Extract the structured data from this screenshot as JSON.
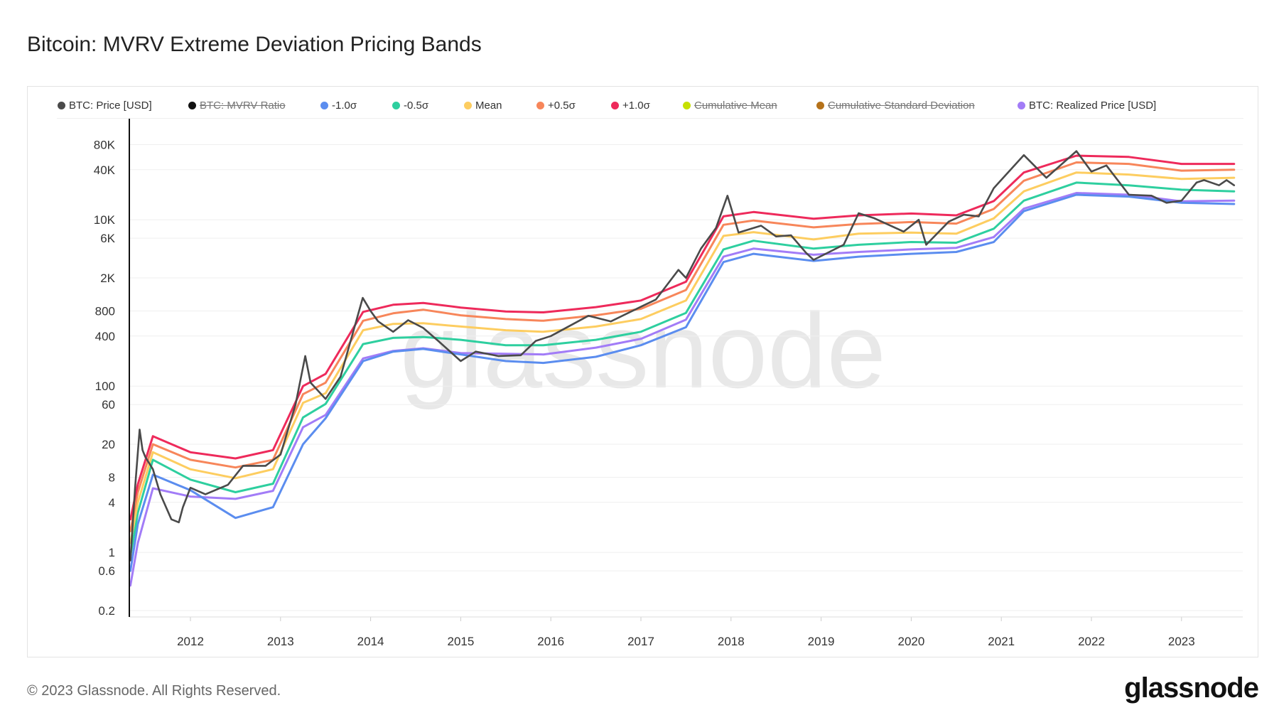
{
  "title": "Bitcoin: MVRV Extreme Deviation Pricing Bands",
  "footer": "© 2023 Glassnode. All Rights Reserved.",
  "logo": "glassnode",
  "watermark": "glassnode",
  "chart_data": {
    "type": "line",
    "title": "Bitcoin: MVRV Extreme Deviation Pricing Bands",
    "y_scale": "log",
    "ylim": [
      0.17,
      164000
    ],
    "xlim": [
      "2011-05",
      "2023-09"
    ],
    "grid": true,
    "legend_placement": "top",
    "y_ticks": [
      {
        "v": 80000,
        "label": "80K"
      },
      {
        "v": 40000,
        "label": "40K"
      },
      {
        "v": 10000,
        "label": "10K"
      },
      {
        "v": 6000,
        "label": "6K"
      },
      {
        "v": 2000,
        "label": "2K"
      },
      {
        "v": 800,
        "label": "800"
      },
      {
        "v": 400,
        "label": "400"
      },
      {
        "v": 100,
        "label": "100"
      },
      {
        "v": 60,
        "label": "60"
      },
      {
        "v": 20,
        "label": "20"
      },
      {
        "v": 8,
        "label": "8"
      },
      {
        "v": 4,
        "label": "4"
      },
      {
        "v": 1,
        "label": "1"
      },
      {
        "v": 0.6,
        "label": "0.6"
      },
      {
        "v": 0.2,
        "label": "0.2"
      }
    ],
    "x_ticks": [
      "2012",
      "2013",
      "2014",
      "2015",
      "2016",
      "2017",
      "2018",
      "2019",
      "2020",
      "2021",
      "2022",
      "2023"
    ],
    "legend": [
      {
        "name": "BTC: Price [USD]",
        "color": "#4a4a4a",
        "hidden": false
      },
      {
        "name": "BTC: MVRV Ratio",
        "color": "#111111",
        "hidden": true
      },
      {
        "name": "-1.0σ",
        "color": "#5b8def",
        "hidden": false
      },
      {
        "name": "-0.5σ",
        "color": "#2ecf9f",
        "hidden": false
      },
      {
        "name": "Mean",
        "color": "#fdcd60",
        "hidden": false
      },
      {
        "name": "+0.5σ",
        "color": "#f7865a",
        "hidden": false
      },
      {
        "name": "+1.0σ",
        "color": "#ee2a5b",
        "hidden": false
      },
      {
        "name": "Cumulative Mean",
        "color": "#c6e000",
        "hidden": true
      },
      {
        "name": "Cumulative Standard Deviation",
        "color": "#b5721a",
        "hidden": true
      },
      {
        "name": "BTC: Realized Price [USD]",
        "color": "#a27cf7",
        "hidden": false
      }
    ],
    "band_dates": [
      "2011-05",
      "2011-06",
      "2011-08",
      "2012-01",
      "2012-07",
      "2012-12",
      "2013-04",
      "2013-07",
      "2013-12",
      "2014-04",
      "2014-08",
      "2015-01",
      "2015-07",
      "2015-12",
      "2016-07",
      "2017-01",
      "2017-07",
      "2017-12",
      "2018-04",
      "2018-12",
      "2019-06",
      "2020-01",
      "2020-07",
      "2020-12",
      "2021-04",
      "2021-11",
      "2022-06",
      "2023-01",
      "2023-08"
    ],
    "series": [
      {
        "name": "BTC: Realized Price [USD]",
        "color": "#a27cf7",
        "values": [
          0.4,
          1.3,
          5.9,
          4.7,
          4.4,
          5.5,
          32,
          45,
          215,
          265,
          285,
          250,
          245,
          240,
          290,
          370,
          630,
          3600,
          4500,
          3800,
          4100,
          4400,
          4600,
          6200,
          13600,
          21000,
          20000,
          16700,
          17000
        ]
      },
      {
        "name": "-1.0σ",
        "color": "#5b8def",
        "values": [
          0.6,
          2.2,
          8.6,
          5.6,
          2.6,
          3.5,
          20,
          41,
          200,
          260,
          280,
          240,
          200,
          190,
          225,
          310,
          510,
          3100,
          3900,
          3200,
          3600,
          3900,
          4100,
          5400,
          12700,
          20000,
          19000,
          16000,
          15500
        ]
      },
      {
        "name": "-0.5σ",
        "color": "#2ecf9f",
        "values": [
          0.9,
          3,
          13,
          7.5,
          5.3,
          6.7,
          42,
          61,
          320,
          380,
          390,
          360,
          310,
          310,
          360,
          450,
          760,
          4400,
          5600,
          4500,
          5000,
          5400,
          5300,
          7800,
          17000,
          28000,
          26000,
          23000,
          22000
        ]
      },
      {
        "name": "Mean",
        "color": "#fdcd60",
        "values": [
          1.3,
          4,
          16,
          10,
          7.8,
          10,
          63,
          82,
          470,
          560,
          570,
          520,
          470,
          450,
          520,
          640,
          1070,
          6400,
          7100,
          5800,
          6800,
          7000,
          6800,
          10400,
          22000,
          37000,
          35000,
          31000,
          32000
        ]
      },
      {
        "name": "+0.5σ",
        "color": "#f7865a",
        "values": [
          1.8,
          5.3,
          20,
          13,
          10.5,
          13,
          80,
          110,
          610,
          750,
          830,
          710,
          640,
          610,
          710,
          850,
          1430,
          8700,
          9800,
          8100,
          8900,
          9400,
          9000,
          13500,
          29500,
          49000,
          47000,
          39000,
          40000
        ]
      },
      {
        "name": "+1.0σ",
        "color": "#ee2a5b",
        "values": [
          2.5,
          6.6,
          25,
          16,
          13.5,
          17,
          100,
          140,
          780,
          950,
          1000,
          880,
          790,
          770,
          890,
          1070,
          1800,
          11000,
          12400,
          10300,
          11300,
          11900,
          11300,
          16800,
          37000,
          59000,
          57000,
          47000,
          47000
        ]
      },
      {
        "name": "BTC: Price [USD]",
        "color": "#4a4a4a",
        "dates": [
          "2011-05",
          "2011-05-20",
          "2011-06-08",
          "2011-06-20",
          "2011-07",
          "2011-08",
          "2011-09",
          "2011-10-15",
          "2011-11-15",
          "2011-12",
          "2012-01",
          "2012-03",
          "2012-06",
          "2012-08",
          "2012-10",
          "2012-11",
          "2013-01",
          "2013-03",
          "2013-04-10",
          "2013-05",
          "2013-07",
          "2013-09",
          "2013-11-30",
          "2014-01",
          "2014-02",
          "2014-04",
          "2014-06",
          "2014-08",
          "2014-10",
          "2015-01",
          "2015-03",
          "2015-06",
          "2015-09",
          "2015-11",
          "2016-01",
          "2016-06",
          "2016-09",
          "2017-01",
          "2017-03",
          "2017-06",
          "2017-07",
          "2017-09",
          "2017-11",
          "2017-12-17",
          "2018-02",
          "2018-05",
          "2018-07",
          "2018-09",
          "2018-11",
          "2018-12",
          "2019-04",
          "2019-06",
          "2019-08",
          "2019-12",
          "2020-02",
          "2020-03",
          "2020-06",
          "2020-08",
          "2020-10",
          "2020-12",
          "2021-04",
          "2021-07",
          "2021-11",
          "2022-01",
          "2022-03",
          "2022-06",
          "2022-09",
          "2022-11",
          "2023-01",
          "2023-03",
          "2023-04",
          "2023-06",
          "2023-07",
          "2023-08"
        ],
        "values": [
          0.8,
          6,
          30,
          17,
          14,
          10,
          5,
          2.5,
          2.3,
          3.5,
          6,
          5,
          6.5,
          11,
          11,
          11,
          15,
          60,
          230,
          110,
          70,
          130,
          1150,
          800,
          600,
          450,
          620,
          500,
          350,
          200,
          260,
          230,
          235,
          350,
          400,
          700,
          600,
          900,
          1100,
          2500,
          2000,
          4500,
          8000,
          19500,
          7000,
          8500,
          6300,
          6500,
          4000,
          3300,
          5000,
          12000,
          10500,
          7200,
          10000,
          5000,
          9500,
          11500,
          11000,
          24000,
          60000,
          32000,
          67000,
          38000,
          45000,
          20000,
          19500,
          16000,
          17000,
          28000,
          30000,
          26000,
          30000,
          26000
        ]
      }
    ]
  }
}
